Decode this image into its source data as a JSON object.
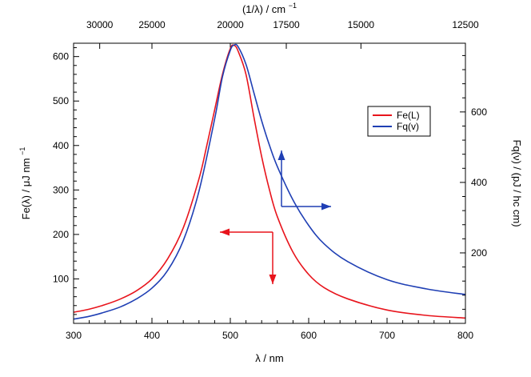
{
  "chart_data": {
    "type": "line",
    "title": "",
    "bottom_axis": {
      "label": "λ / nm",
      "range": [
        300,
        800
      ],
      "ticks": [
        300,
        400,
        500,
        600,
        700,
        800
      ]
    },
    "top_axis": {
      "label_main": "(1/λ) / cm",
      "label_sup": "−1",
      "unit_scale": "reciprocal",
      "ticks": [
        30000,
        25000,
        20000,
        17500,
        15000,
        12500
      ]
    },
    "left_axis": {
      "label_main": "Fe(λ)  /  μJ nm",
      "label_sup": "−1",
      "range": [
        0,
        630
      ],
      "ticks": [
        100,
        200,
        300,
        400,
        500,
        600
      ]
    },
    "right_axis": {
      "label": "Fq(ν) / (pJ / hc cm)",
      "range": [
        0,
        795
      ],
      "ticks": [
        200,
        400,
        600
      ]
    },
    "legend": {
      "placement": "upper-right",
      "entries": [
        {
          "name": "Fe(L)",
          "color": "#e8141c"
        },
        {
          "name": "Fq(v)",
          "color": "#1f3fb4"
        }
      ]
    },
    "series": [
      {
        "name": "Fe(L)",
        "color": "#e8141c",
        "axis": "left",
        "x": [
          300,
          320,
          340,
          360,
          380,
          400,
          420,
          440,
          460,
          470,
          480,
          490,
          500,
          505,
          510,
          520,
          530,
          540,
          550,
          560,
          580,
          600,
          620,
          650,
          700,
          750,
          800
        ],
        "y": [
          25,
          32,
          42,
          55,
          73,
          100,
          145,
          215,
          325,
          400,
          480,
          560,
          618,
          625,
          612,
          560,
          465,
          375,
          300,
          240,
          160,
          110,
          80,
          55,
          30,
          18,
          12
        ]
      },
      {
        "name": "Fq(v)",
        "color": "#1f3fb4",
        "axis": "right",
        "x": [
          300,
          320,
          340,
          360,
          380,
          400,
          420,
          440,
          460,
          480,
          490,
          500,
          505,
          510,
          520,
          530,
          540,
          550,
          560,
          580,
          600,
          620,
          650,
          700,
          750,
          800
        ],
        "y": [
          12,
          20,
          32,
          47,
          69,
          100,
          150,
          235,
          375,
          580,
          700,
          775,
          790,
          785,
          735,
          655,
          575,
          505,
          445,
          350,
          278,
          225,
          175,
          124,
          98,
          82
        ]
      }
    ],
    "arrows": [
      {
        "series": "Fe(L)",
        "color": "#e8141c",
        "points_to": [
          "left",
          "down"
        ]
      },
      {
        "series": "Fq(v)",
        "color": "#1f3fb4",
        "points_to": [
          "up",
          "right"
        ]
      }
    ]
  }
}
